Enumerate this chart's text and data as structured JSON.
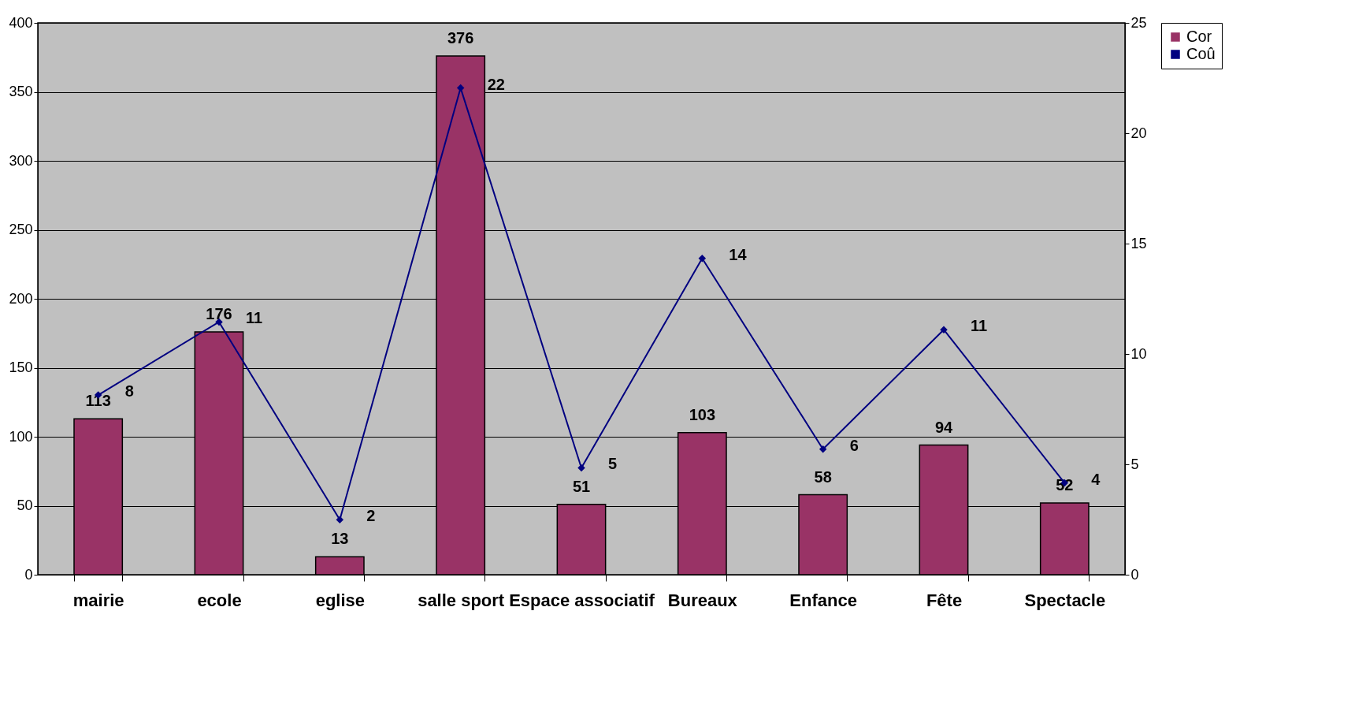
{
  "chart_data": {
    "type": "bar",
    "categories": [
      "mairie",
      "ecole",
      "eglise",
      "salle sport",
      "Espace associatif",
      "Bureaux",
      "Enfance",
      "Fête",
      "Spectacle"
    ],
    "series": [
      {
        "name": "Cor",
        "color": "#993366",
        "values": [
          113,
          176,
          13,
          376,
          51,
          103,
          58,
          94,
          52
        ]
      },
      {
        "name": "Coû",
        "type": "line",
        "axis": "y2",
        "color": "#000080",
        "marker": "diamond",
        "values": [
          8.14,
          11.45,
          2.49,
          22.05,
          4.84,
          14.33,
          5.69,
          11.1,
          4.16
        ],
        "value_labels": [
          "8",
          "11",
          "2",
          "22",
          "5",
          "14",
          "6",
          "11",
          "4"
        ]
      }
    ],
    "data_labels": true,
    "ylim": [
      0,
      400
    ],
    "yticks": [
      0,
      50,
      100,
      150,
      200,
      250,
      300,
      350,
      400
    ],
    "y2lim": [
      0,
      25
    ],
    "y2ticks": [
      0,
      5,
      10,
      15,
      20,
      25
    ],
    "grid": "y",
    "legend": "right"
  }
}
